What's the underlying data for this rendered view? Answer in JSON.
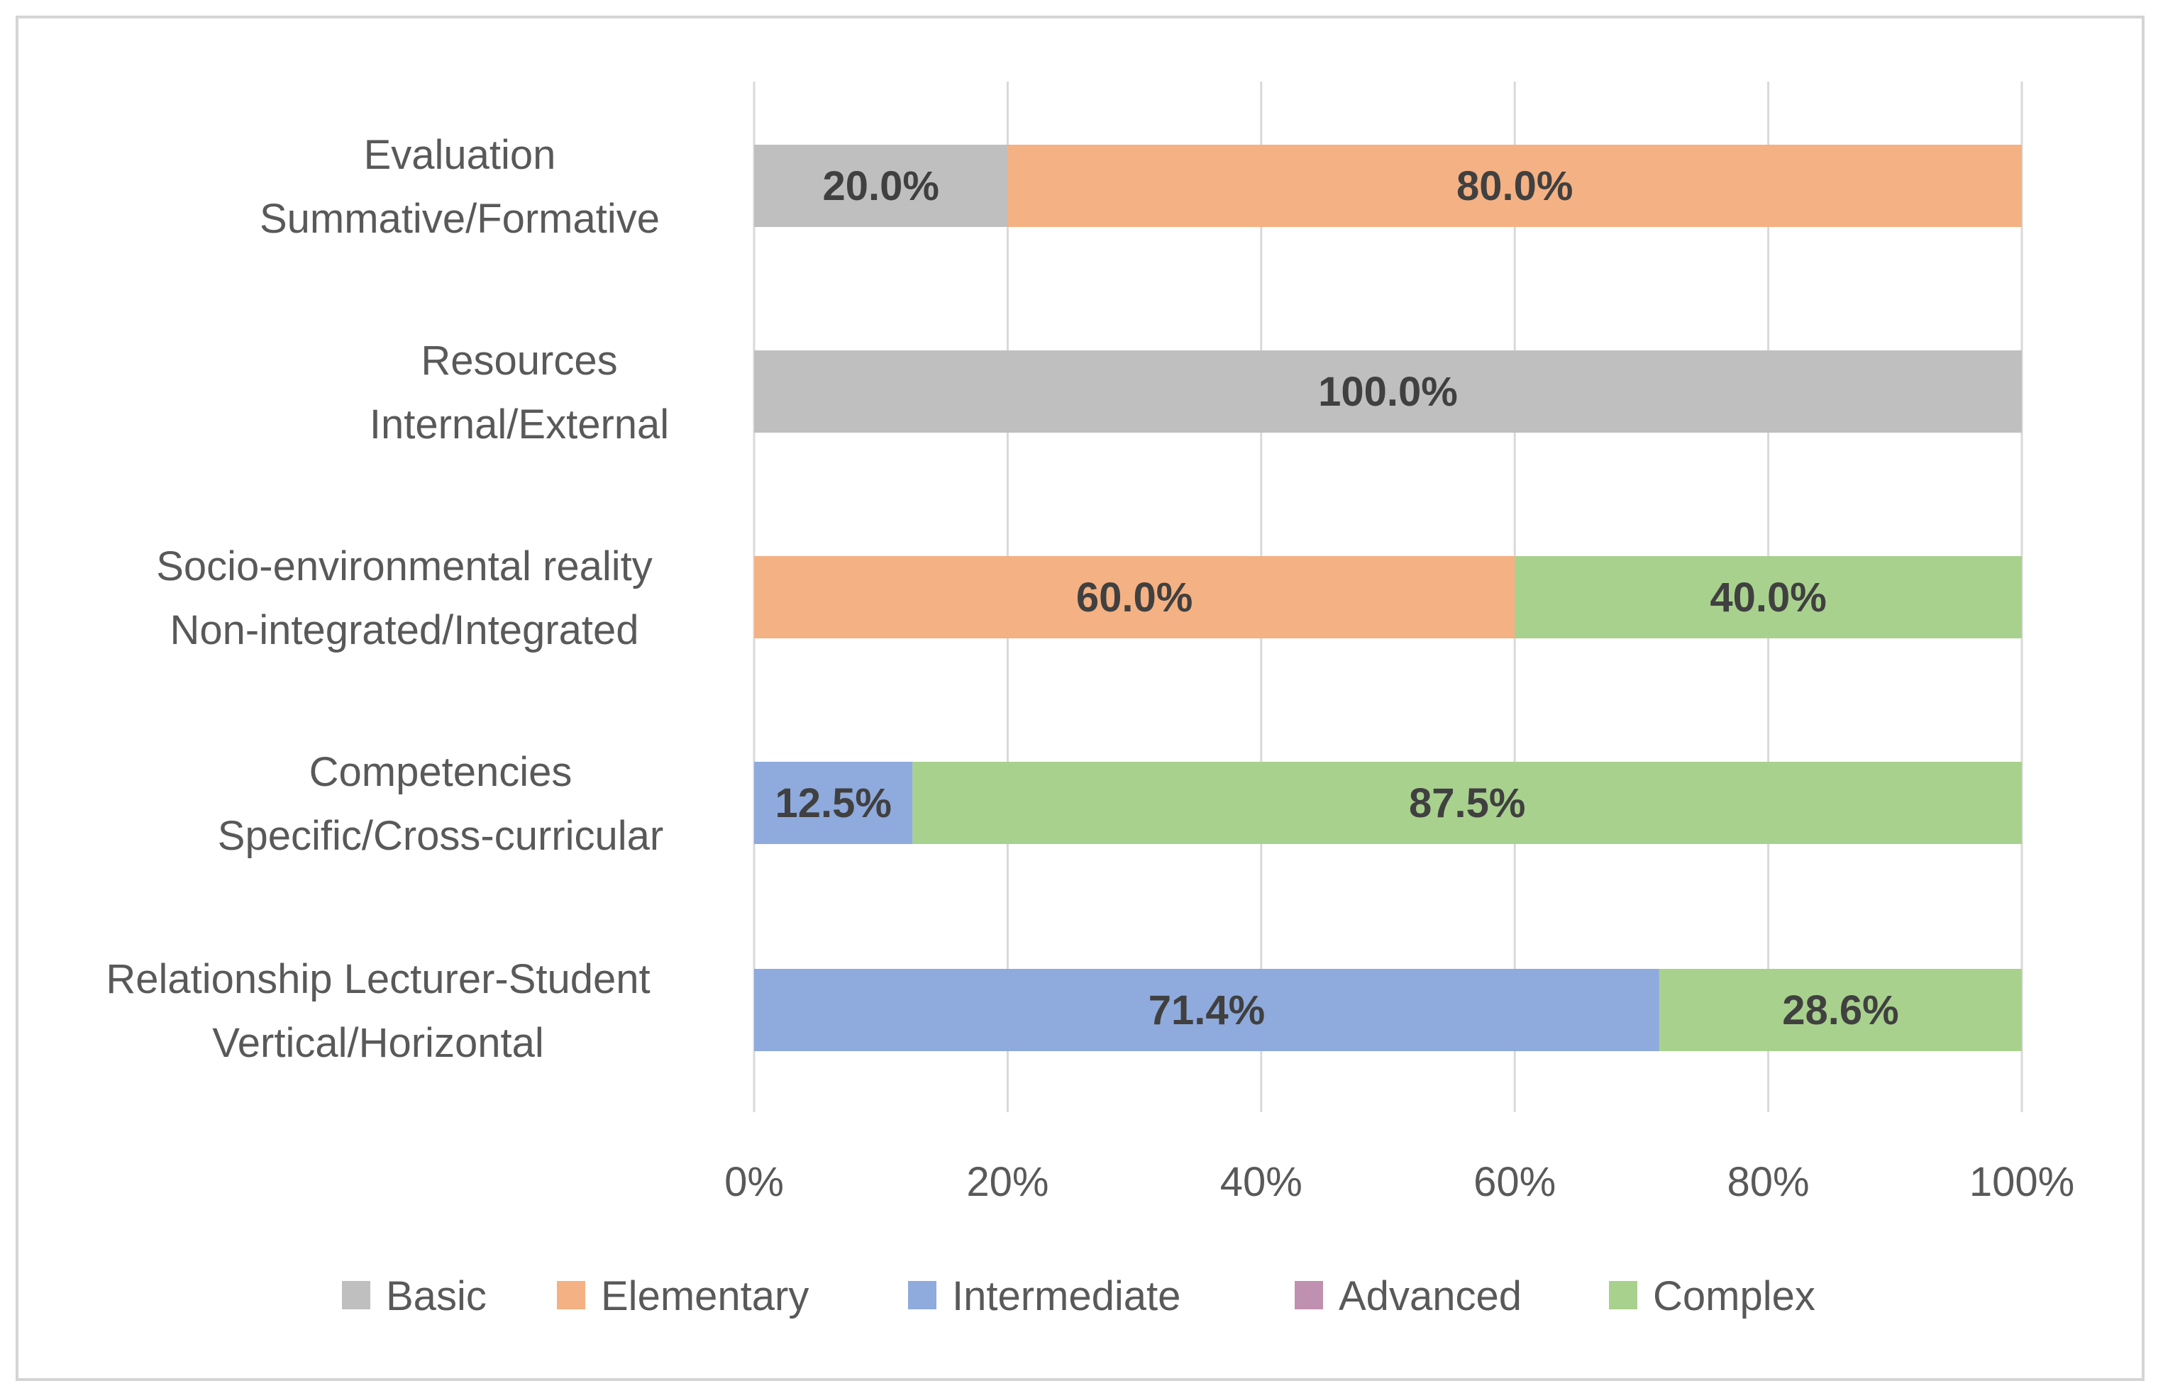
{
  "chart_data": {
    "type": "bar",
    "orientation": "horizontal",
    "stacked": true,
    "percent": true,
    "title": "",
    "xlabel": "",
    "ylabel": "",
    "xlim": [
      0,
      100
    ],
    "x_ticks": [
      "0%",
      "20%",
      "40%",
      "60%",
      "80%",
      "100%"
    ],
    "grid": true,
    "legend_position": "bottom",
    "categories": [
      [
        "Evaluation",
        "Summative/Formative"
      ],
      [
        "Resources",
        "Internal/External"
      ],
      [
        "Socio-environmental reality",
        "Non-integrated/Integrated"
      ],
      [
        "Competencies",
        "Specific/Cross-curricular"
      ],
      [
        "Relationship Lecturer-Student",
        "Vertical/Horizontal"
      ]
    ],
    "series": [
      {
        "name": "Basic",
        "color": "#bfbfbf",
        "values": [
          20.0,
          100.0,
          0,
          0,
          0
        ],
        "labels": [
          "20.0%",
          "100.0%",
          "",
          "",
          ""
        ]
      },
      {
        "name": "Elementary",
        "color": "#f4b183",
        "values": [
          80.0,
          0,
          60.0,
          0,
          0
        ],
        "labels": [
          "80.0%",
          "",
          "60.0%",
          "",
          ""
        ]
      },
      {
        "name": "Intermediate",
        "color": "#8faadc",
        "values": [
          0,
          0,
          0,
          12.5,
          71.4
        ],
        "labels": [
          "",
          "",
          "",
          "12.5%",
          "71.4%"
        ]
      },
      {
        "name": "Advanced",
        "color": "#c090b0",
        "values": [
          0,
          0,
          0,
          0,
          0
        ],
        "labels": [
          "",
          "",
          "",
          "",
          ""
        ]
      },
      {
        "name": "Complex",
        "color": "#a9d18e",
        "values": [
          0,
          0,
          40.0,
          87.5,
          28.6
        ],
        "labels": [
          "",
          "",
          "40.0%",
          "87.5%",
          "28.6%"
        ]
      }
    ]
  }
}
